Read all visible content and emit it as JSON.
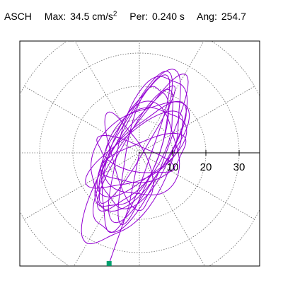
{
  "header": {
    "station": "ASCH",
    "max_label": "Max:",
    "max_value": "34.5 cm/s",
    "max_exponent": "2",
    "period_label": "Per:",
    "period_value": "0.240 s",
    "angle_label": "Ang:",
    "angle_value": "254.7"
  },
  "chart_data": {
    "type": "polar-particle-motion",
    "title": "",
    "units": "cm/s^2",
    "radial_ticks": [
      10,
      20,
      30
    ],
    "radial_tick_labels": [
      "10",
      "20",
      "30"
    ],
    "grid_rings": [
      10,
      20,
      30,
      40
    ],
    "grid_spokes_deg": [
      0,
      30,
      60,
      90,
      120,
      150,
      180,
      210,
      240,
      270,
      300,
      330
    ],
    "grid": true,
    "peak_amplitude": 34.5,
    "peak_angle_deg": 254.7,
    "trace_color": "#9400d3",
    "peak_marker_color": "#00a06e",
    "trace_lobes": [
      {
        "a": 20,
        "b": 6,
        "angle_deg": 60,
        "cx": 0,
        "cy": 0
      },
      {
        "a": 22,
        "b": 7,
        "angle_deg": 65,
        "cx": -1,
        "cy": 2
      },
      {
        "a": 18,
        "b": 8,
        "angle_deg": 55,
        "cx": 1,
        "cy": -1
      },
      {
        "a": 24,
        "b": 6,
        "angle_deg": 70,
        "cx": -2,
        "cy": 0
      },
      {
        "a": 16,
        "b": 9,
        "angle_deg": 45,
        "cx": 0,
        "cy": 1
      },
      {
        "a": 21,
        "b": 5,
        "angle_deg": 75,
        "cx": 1,
        "cy": 1
      },
      {
        "a": 13,
        "b": 6,
        "angle_deg": 20,
        "cx": 2,
        "cy": -2
      },
      {
        "a": 15,
        "b": 5,
        "angle_deg": 110,
        "cx": -3,
        "cy": -3
      },
      {
        "a": 26,
        "b": 7,
        "angle_deg": 62,
        "cx": 0,
        "cy": -2
      },
      {
        "a": 19,
        "b": 10,
        "angle_deg": 50,
        "cx": -1,
        "cy": 0
      },
      {
        "a": 12,
        "b": 4,
        "angle_deg": 160,
        "cx": -2,
        "cy": -1
      },
      {
        "a": 23,
        "b": 8,
        "angle_deg": 68,
        "cx": 2,
        "cy": 3
      },
      {
        "a": 17,
        "b": 7,
        "angle_deg": 35,
        "cx": 0,
        "cy": 0
      },
      {
        "a": 28,
        "b": 9,
        "angle_deg": 64,
        "cx": -1,
        "cy": -3
      },
      {
        "a": 14,
        "b": 11,
        "angle_deg": 80,
        "cx": 1,
        "cy": 0
      },
      {
        "a": 20,
        "b": 4,
        "angle_deg": 57,
        "cx": -2,
        "cy": 2
      }
    ]
  }
}
